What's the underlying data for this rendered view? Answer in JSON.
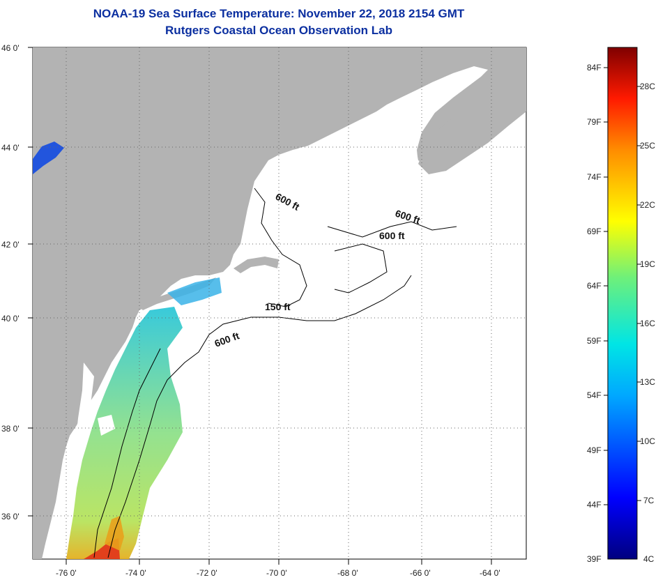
{
  "header": {
    "title": "NOAA-19 Sea Surface Temperature:  November 22, 2018 2154 GMT",
    "subtitle": "Rutgers Coastal Ocean Observation Lab"
  },
  "axes": {
    "lat_labels": [
      "46 0'",
      "44 0'",
      "42 0'",
      "40 0'",
      "38 0'",
      "36 0'"
    ],
    "lon_labels": [
      "-76 0'",
      "-74 0'",
      "-72 0'",
      "-70 0'",
      "-68 0'",
      "-66 0'",
      "-64 0'"
    ]
  },
  "isobath_labels": [
    "600 ft",
    "600 ft",
    "600 ft",
    "150 ft",
    "600 ft"
  ],
  "colorbar": {
    "fahrenheit": [
      "84F",
      "79F",
      "74F",
      "69F",
      "64F",
      "59F",
      "54F",
      "49F",
      "44F",
      "39F"
    ],
    "celsius": [
      "28C",
      "25C",
      "22C",
      "19C",
      "16C",
      "13C",
      "10C",
      "7C",
      "4C"
    ]
  },
  "colors": {
    "land": "#b3b3b3",
    "ocean": "#ffffff",
    "title": "#0b2fa0"
  }
}
